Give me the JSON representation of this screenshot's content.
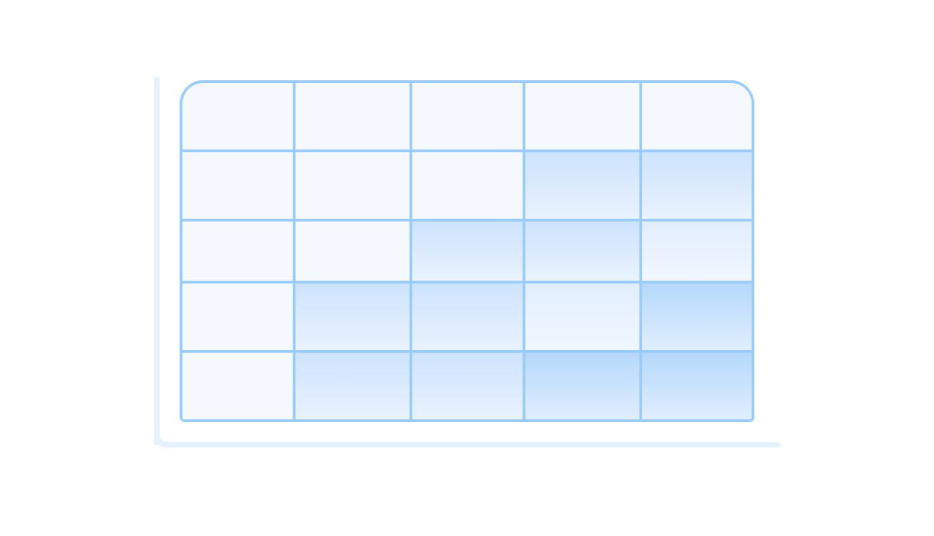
{
  "heatmap": {
    "rows": 5,
    "columns": 5,
    "intensity": [
      [
        0,
        0,
        0,
        0,
        0
      ],
      [
        0,
        0,
        0,
        2,
        2
      ],
      [
        0,
        0,
        2,
        2,
        1
      ],
      [
        0,
        2,
        2,
        1,
        3
      ],
      [
        0,
        2,
        2,
        3,
        3
      ]
    ],
    "colors": {
      "border": "#99cbfd",
      "axis": "#e6f1fe",
      "level0": [
        "#f5f9ff",
        "#f5f9ff"
      ],
      "level1": [
        "#e2eefd",
        "#f1f7ff"
      ],
      "level2": [
        "#cde3fd",
        "#eaf3fe"
      ],
      "level3": [
        "#b5d8fc",
        "#e2effe"
      ]
    }
  }
}
